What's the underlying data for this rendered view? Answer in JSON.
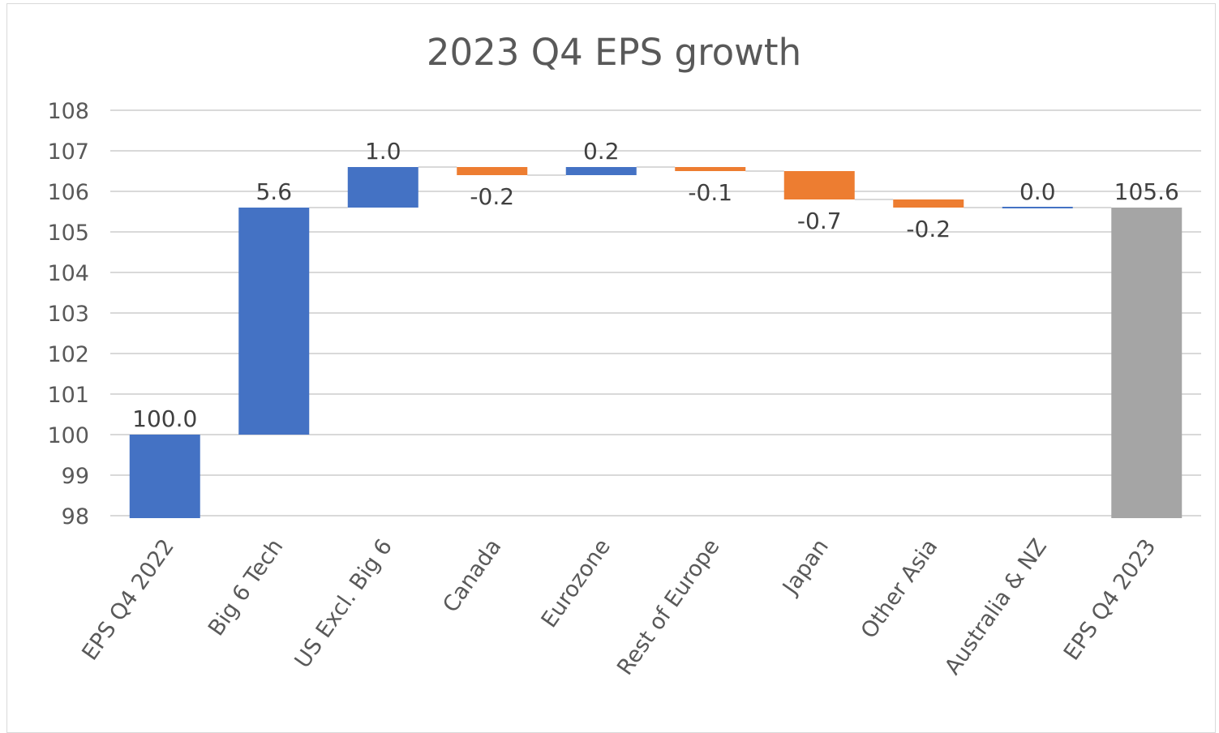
{
  "chart_data": {
    "type": "waterfall",
    "title": "2023 Q4 EPS growth",
    "ylim": [
      98,
      108
    ],
    "yticks": [
      98,
      99,
      100,
      101,
      102,
      103,
      104,
      105,
      106,
      107,
      108
    ],
    "grid": true,
    "legend": "none",
    "categories": [
      "EPS Q4 2022",
      "Big 6 Tech",
      "US Excl. Big 6",
      "Canada",
      "Eurozone",
      "Rest of Europe",
      "Japan",
      "Other Asia",
      "Australia & NZ",
      "EPS Q4 2023"
    ],
    "values": [
      100.0,
      5.6,
      1.0,
      -0.2,
      0.2,
      -0.1,
      -0.7,
      -0.2,
      0.0,
      105.6
    ],
    "labels": [
      "100.0",
      "5.6",
      "1.0",
      "-0.2",
      "0.2",
      "-0.1",
      "-0.7",
      "-0.2",
      "0.0",
      "105.6"
    ],
    "kinds": [
      "total",
      "change",
      "change",
      "change",
      "change",
      "change",
      "change",
      "change",
      "change",
      "total"
    ],
    "colors": {
      "increase": "#4472c4",
      "decrease": "#ed7d31",
      "start_total": "#4472c4",
      "end_total": "#a5a5a5"
    }
  }
}
